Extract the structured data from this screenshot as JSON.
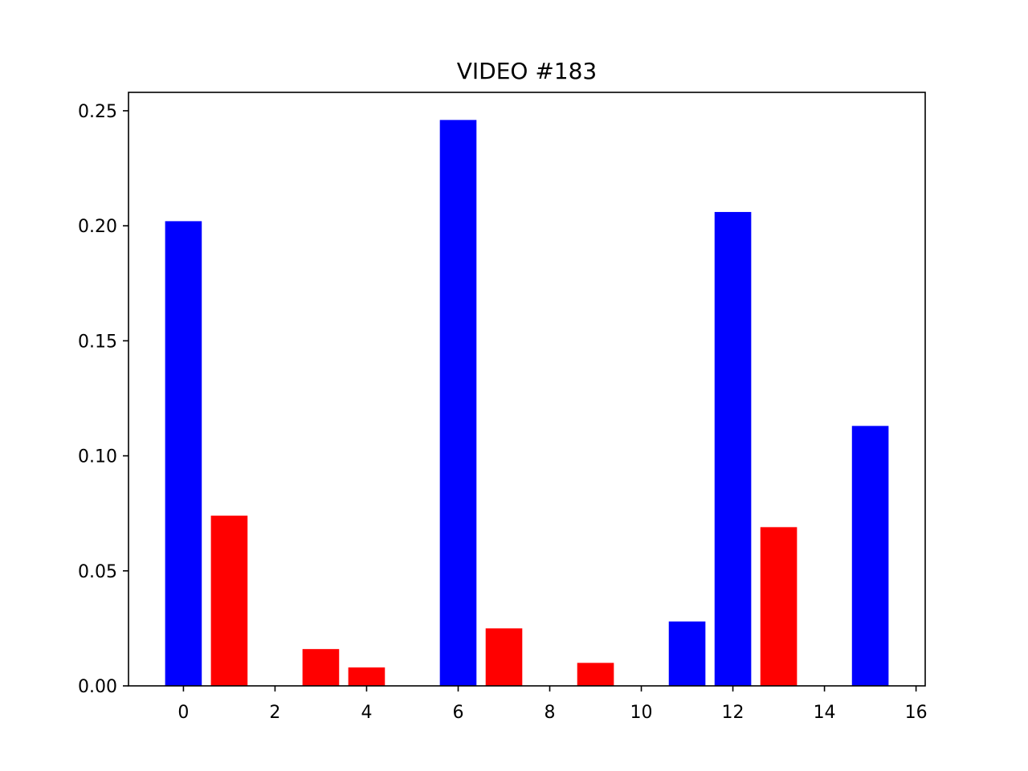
{
  "chart_data": {
    "type": "bar",
    "title": "VIDEO #183",
    "xlabel": "",
    "ylabel": "",
    "xlim": [
      -1.2,
      16.2
    ],
    "ylim": [
      0,
      0.258
    ],
    "xticks": [
      0,
      2,
      4,
      6,
      8,
      10,
      12,
      14,
      16
    ],
    "yticks": [
      0.0,
      0.05,
      0.1,
      0.15,
      0.2,
      0.25
    ],
    "ytick_labels": [
      "0.00",
      "0.05",
      "0.10",
      "0.15",
      "0.20",
      "0.25"
    ],
    "grid": false,
    "bar_width": 0.8,
    "bars": [
      {
        "x": 0,
        "value": 0.202,
        "color": "#0000ff"
      },
      {
        "x": 1,
        "value": 0.074,
        "color": "#ff0000"
      },
      {
        "x": 3,
        "value": 0.016,
        "color": "#ff0000"
      },
      {
        "x": 4,
        "value": 0.008,
        "color": "#ff0000"
      },
      {
        "x": 6,
        "value": 0.246,
        "color": "#0000ff"
      },
      {
        "x": 7,
        "value": 0.025,
        "color": "#ff0000"
      },
      {
        "x": 9,
        "value": 0.01,
        "color": "#ff0000"
      },
      {
        "x": 11,
        "value": 0.028,
        "color": "#0000ff"
      },
      {
        "x": 12,
        "value": 0.206,
        "color": "#0000ff"
      },
      {
        "x": 13,
        "value": 0.069,
        "color": "#ff0000"
      },
      {
        "x": 15,
        "value": 0.113,
        "color": "#0000ff"
      }
    ]
  }
}
